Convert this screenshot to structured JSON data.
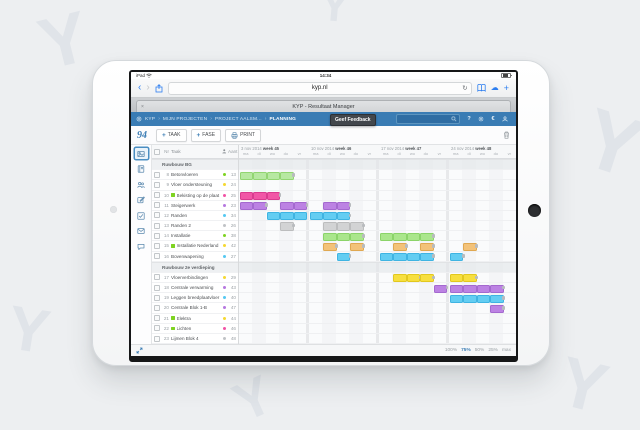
{
  "device": {
    "status_left": "iPad",
    "time": "14:34"
  },
  "browser": {
    "url": "kyp.nl",
    "tab_title": "KYP - Resultaat Manager",
    "icons": {
      "back": "‹",
      "forward": "›",
      "refresh": "↻",
      "cloud": "☁",
      "add_tab": "+",
      "tab_close": "×"
    }
  },
  "navbar": {
    "breadcrumbs": [
      "KYP",
      "MIJN PROJECTEN",
      "PROJECT AALSM...",
      "PLANNING"
    ],
    "crumb_separator": "›",
    "tooltip": "Geef Feedback",
    "right_icons": [
      {
        "name": "help-icon",
        "glyph": "?"
      },
      {
        "name": "settings-icon",
        "glyph": "gear"
      },
      {
        "name": "euro-icon",
        "glyph": "€"
      },
      {
        "name": "user-icon",
        "glyph": "user"
      }
    ]
  },
  "toolbar": {
    "logo": "94",
    "buttons": [
      {
        "label": "TAAK",
        "icon": "plus"
      },
      {
        "label": "FASE",
        "icon": "plus"
      },
      {
        "label": "PRINT",
        "icon": "printer"
      }
    ]
  },
  "sidebar_icons": [
    "planning-icon",
    "documents-icon",
    "team-icon",
    "edit-icon",
    "tasks-icon",
    "mail-icon",
    "chat-icon"
  ],
  "table_headers": {
    "nr": "Nr",
    "name": "Taak",
    "count": "Aant"
  },
  "footer": {
    "zoom_levels": [
      "100%",
      "75%",
      "50%",
      "25%",
      "max"
    ],
    "zoom_active": "75%"
  },
  "gantt": {
    "weeks": [
      {
        "date": "3 nov 2014",
        "week": "week 45"
      },
      {
        "date": "10 nov 2014",
        "week": "week 46"
      },
      {
        "date": "17 nov 2014",
        "week": "week 47"
      },
      {
        "date": "24 nov 2014",
        "week": "week 48"
      }
    ],
    "day_labels": [
      "ma",
      "di",
      "wo",
      "do",
      "vr"
    ],
    "palette": {
      "green": {
        "bg": "#b7e8a2",
        "br": "#92d572"
      },
      "green2": {
        "bg": "#aae68c",
        "br": "#8bd469"
      },
      "pink": {
        "bg": "#f156a6",
        "br": "#d93b8f"
      },
      "purple": {
        "bg": "#bc82e3",
        "br": "#a469cf"
      },
      "cyan": {
        "bg": "#63cdf2",
        "br": "#3fb4e2"
      },
      "gray": {
        "bg": "#d2d3d4",
        "br": "#bcbdbe"
      },
      "orange": {
        "bg": "#f3c279",
        "br": "#e0a851"
      },
      "yellow": {
        "bg": "#f7df3e",
        "br": "#e2c81e"
      }
    },
    "dot_colors": {
      "green": "#7ed321",
      "yellow": "#f5d832",
      "pink": "#f153a5",
      "purple": "#b678e0",
      "blue": "#55c9f2",
      "gray": "#c0c3c6"
    },
    "tasks": [
      {
        "type": "group",
        "name": "Ruwbouw BG"
      },
      {
        "nr": "8",
        "name": "Betonvloeren",
        "dot": "green",
        "count": "13",
        "bars": [
          {
            "start": 0,
            "len": 4,
            "color": "green"
          }
        ]
      },
      {
        "nr": "9",
        "name": "Vloer ondersteuning",
        "dot": "yellow",
        "count": "24",
        "bars": []
      },
      {
        "nr": "10",
        "name": "Bekisting op de plaat",
        "dot": "pink",
        "count": "25",
        "flag": true,
        "bars": [
          {
            "start": 0,
            "len": 3,
            "color": "pink"
          }
        ]
      },
      {
        "nr": "11",
        "name": "Steigerwerk",
        "dot": "purple",
        "count": "23",
        "bars": [
          {
            "start": 0,
            "len": 2,
            "color": "purple"
          },
          {
            "start": 3,
            "len": 2,
            "color": "purple"
          },
          {
            "start": 6,
            "len": 2,
            "color": "purple"
          }
        ]
      },
      {
        "nr": "12",
        "name": "Randen",
        "dot": "blue",
        "count": "34",
        "bars": [
          {
            "start": 2,
            "len": 6,
            "color": "cyan"
          }
        ]
      },
      {
        "nr": "13",
        "name": "Randen 2",
        "dot": "gray",
        "count": "26",
        "bars": [
          {
            "start": 3,
            "len": 1,
            "color": "gray"
          },
          {
            "start": 6,
            "len": 3,
            "color": "gray"
          }
        ]
      },
      {
        "nr": "14",
        "name": "Installatie",
        "dot": "green",
        "count": "38",
        "bars": [
          {
            "start": 6,
            "len": 3,
            "color": "green2"
          },
          {
            "start": 10,
            "len": 4,
            "color": "green2"
          }
        ]
      },
      {
        "nr": "15",
        "name": "Installatie Nederland",
        "dot": "yellow",
        "count": "42",
        "flag": true,
        "bars": [
          {
            "start": 6,
            "len": 1,
            "color": "orange"
          },
          {
            "start": 8,
            "len": 1,
            "color": "orange"
          },
          {
            "start": 11,
            "len": 1,
            "color": "orange"
          },
          {
            "start": 13,
            "len": 1,
            "color": "orange"
          },
          {
            "start": 16,
            "len": 1,
            "color": "orange"
          }
        ]
      },
      {
        "nr": "16",
        "name": "Bovenwapening",
        "dot": "blue",
        "count": "27",
        "bars": [
          {
            "start": 7,
            "len": 1,
            "color": "cyan"
          },
          {
            "start": 10,
            "len": 4,
            "color": "cyan"
          },
          {
            "start": 15,
            "len": 1,
            "color": "cyan"
          }
        ]
      },
      {
        "type": "group",
        "name": "Ruwbouw 2e verdieping"
      },
      {
        "nr": "17",
        "name": "Vloerverbindingen",
        "dot": "yellow",
        "count": "29",
        "bars": [
          {
            "start": 11,
            "len": 2,
            "color": "yellow"
          },
          {
            "start": 13,
            "len": 1,
            "color": "yellow"
          },
          {
            "start": 15,
            "len": 2,
            "color": "yellow"
          }
        ]
      },
      {
        "nr": "18",
        "name": "Centrale verwarming",
        "dot": "purple",
        "count": "43",
        "bars": [
          {
            "start": 14,
            "len": 1,
            "color": "purple"
          },
          {
            "start": 15,
            "len": 4,
            "color": "purple"
          }
        ]
      },
      {
        "nr": "19",
        "name": "Leggen breedplaatvloer",
        "dot": "blue",
        "count": "40",
        "bars": [
          {
            "start": 15,
            "len": 4,
            "color": "cyan"
          }
        ]
      },
      {
        "nr": "20",
        "name": "Centrale Blok 1-B",
        "dot": "purple",
        "count": "47",
        "bars": [
          {
            "start": 18,
            "len": 1,
            "color": "purple"
          }
        ]
      },
      {
        "nr": "21",
        "name": "Elektra",
        "dot": "yellow",
        "count": "44",
        "flag": true,
        "bars": []
      },
      {
        "nr": "22",
        "name": "Lichten",
        "dot": "pink",
        "count": "46",
        "flag": true,
        "bars": []
      },
      {
        "nr": "23",
        "name": "Lijmen Blok 4",
        "dot": "gray",
        "count": "48",
        "bars": []
      }
    ]
  }
}
